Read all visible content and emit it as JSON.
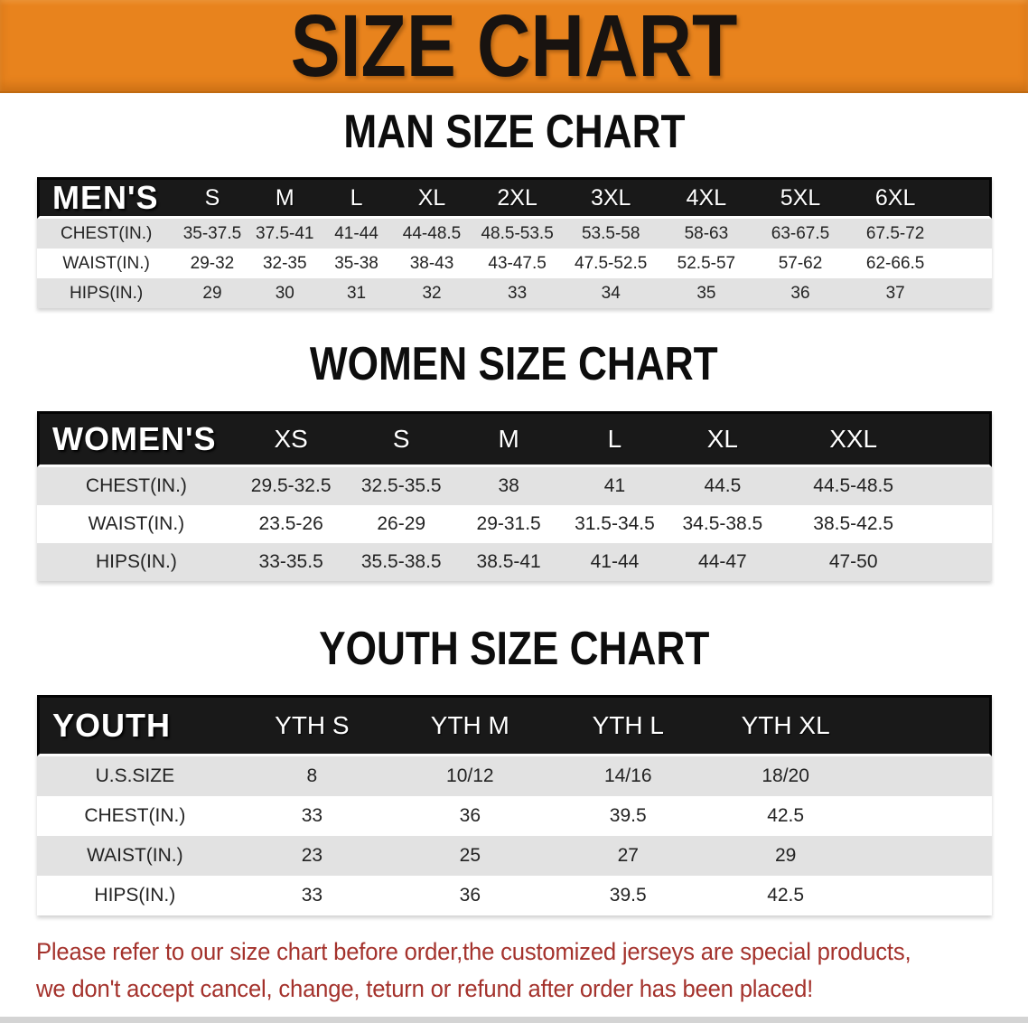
{
  "banner": {
    "title": "SIZE CHART"
  },
  "sections": [
    {
      "title": "MAN SIZE CHART",
      "header_label": "MEN'S",
      "columns": [
        "S",
        "M",
        "L",
        "XL",
        "2XL",
        "3XL",
        "4XL",
        "5XL",
        "6XL"
      ],
      "rows": [
        {
          "label": "CHEST(IN.)",
          "values": [
            "35-37.5",
            "37.5-41",
            "41-44",
            "44-48.5",
            "48.5-53.5",
            "53.5-58",
            "58-63",
            "63-67.5",
            "67.5-72"
          ]
        },
        {
          "label": "WAIST(IN.)",
          "values": [
            "29-32",
            "32-35",
            "35-38",
            "38-43",
            "43-47.5",
            "47.5-52.5",
            "52.5-57",
            "57-62",
            "62-66.5"
          ]
        },
        {
          "label": "HIPS(IN.)",
          "values": [
            "29",
            "30",
            "31",
            "32",
            "33",
            "34",
            "35",
            "36",
            "37"
          ]
        }
      ]
    },
    {
      "title": "WOMEN SIZE CHART",
      "header_label": "WOMEN'S",
      "columns": [
        "XS",
        "S",
        "M",
        "L",
        "XL",
        "XXL"
      ],
      "rows": [
        {
          "label": "CHEST(IN.)",
          "values": [
            "29.5-32.5",
            "32.5-35.5",
            "38",
            "41",
            "44.5",
            "44.5-48.5"
          ]
        },
        {
          "label": "WAIST(IN.)",
          "values": [
            "23.5-26",
            "26-29",
            "29-31.5",
            "31.5-34.5",
            "34.5-38.5",
            "38.5-42.5"
          ]
        },
        {
          "label": "HIPS(IN.)",
          "values": [
            "33-35.5",
            "35.5-38.5",
            "38.5-41",
            "41-44",
            "44-47",
            "47-50"
          ]
        }
      ]
    },
    {
      "title": "YOUTH SIZE CHART",
      "header_label": "YOUTH",
      "columns": [
        "YTH S",
        "YTH M",
        "YTH L",
        "YTH XL"
      ],
      "rows": [
        {
          "label": "U.S.SIZE",
          "values": [
            "8",
            "10/12",
            "14/16",
            "18/20"
          ]
        },
        {
          "label": "CHEST(IN.)",
          "values": [
            "33",
            "36",
            "39.5",
            "42.5"
          ]
        },
        {
          "label": "WAIST(IN.)",
          "values": [
            "23",
            "25",
            "27",
            "29"
          ]
        },
        {
          "label": "HIPS(IN.)",
          "values": [
            "33",
            "36",
            "39.5",
            "42.5"
          ]
        }
      ]
    }
  ],
  "disclaimer": {
    "line1": "Please refer to our size chart before order,the customized jerseys are special products,",
    "line2": "we don't accept cancel, change, teturn or refund after order has been placed!"
  },
  "colors": {
    "banner-bg": "#E8831D",
    "banner-text": "#181310",
    "header-bg": "#191919",
    "row-gray": "#E2E2E2",
    "text-dark": "#232323",
    "disclaimer-red": "#A4322C"
  }
}
